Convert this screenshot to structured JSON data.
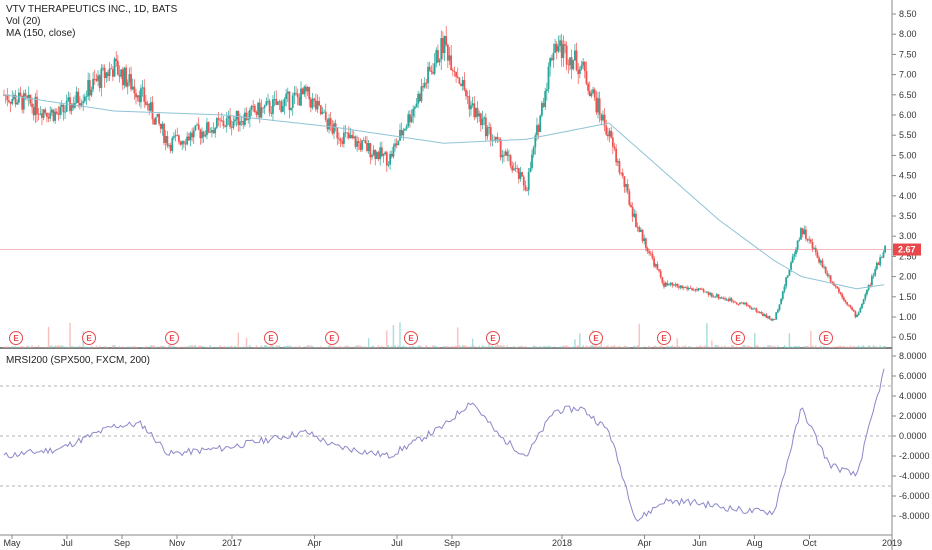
{
  "chart_data": [
    {
      "type": "candlestick",
      "title": "VTV THERAPEUTICS INC., 1D, BATS",
      "legend": [
        "Vol (20)",
        "MA (150, close)"
      ],
      "ylim": [
        0.3,
        8.6
      ],
      "y_ticks": [
        "8.50",
        "8.00",
        "7.50",
        "7.00",
        "6.50",
        "6.00",
        "5.50",
        "5.00",
        "4.50",
        "4.00",
        "3.50",
        "3.00",
        "2.50",
        "2.00",
        "1.50",
        "1.00",
        "0.50"
      ],
      "x_ticks": [
        "May",
        "Jul",
        "Sep",
        "Nov",
        "2017",
        "Apr",
        "Jul",
        "Sep",
        "2018",
        "Apr",
        "Jun",
        "Aug",
        "Oct",
        "2019"
      ],
      "last_price": "2.67",
      "earnings_markers": [
        "E",
        "E",
        "E",
        "E",
        "E",
        "E",
        "E",
        "E",
        "E",
        "E",
        "E"
      ],
      "series": [
        {
          "name": "VTV THERAPEUTICS INC.",
          "x": [
            "May 2016",
            "Jul 2016",
            "Sep 2016",
            "Oct 2016",
            "Nov 2016",
            "2017",
            "Apr 2017",
            "May 2017",
            "Jul 2017",
            "Sep 2017",
            "Oct 2017",
            "Nov 2017",
            "Dec 2017",
            "Jan 2018",
            "Feb 2018",
            "Mar 2018",
            "Apr 2018",
            "May 2018",
            "Jun 2018",
            "Aug 2018",
            "Sep 2018",
            "Oct 2018",
            "Nov 2018",
            "Dec 2018",
            "Jan 2019"
          ],
          "values": [
            6.5,
            6.0,
            7.2,
            6.5,
            5.3,
            5.8,
            6.5,
            5.6,
            4.9,
            7.8,
            6.2,
            5.2,
            4.2,
            7.8,
            7.2,
            5.5,
            3.3,
            1.8,
            1.7,
            1.3,
            0.9,
            3.2,
            2.0,
            1.0,
            2.7
          ]
        },
        {
          "name": "MA (150, close)",
          "x": [
            "May 2016",
            "Sep 2016",
            "2017",
            "May 2017",
            "Sep 2017",
            "Dec 2017",
            "Mar 2018",
            "May 2018",
            "Jul 2018",
            "Sep 2018",
            "Oct 2018",
            "Dec 2018",
            "Jan 2019"
          ],
          "values": [
            6.5,
            6.1,
            6.0,
            5.7,
            5.3,
            5.4,
            5.8,
            4.6,
            3.4,
            2.4,
            2.0,
            1.7,
            1.8
          ]
        }
      ]
    },
    {
      "type": "line",
      "title": "MRSI200 (SPX500, FXCM, 200)",
      "ylim": [
        -9,
        8.5
      ],
      "y_ticks": [
        "8.0000",
        "6.0000",
        "4.0000",
        "2.0000",
        "0.0000",
        "-2.0000",
        "-4.0000",
        "-6.0000",
        "-8.0000"
      ],
      "reference_lines": [
        5,
        0,
        -5
      ],
      "series": [
        {
          "name": "MRSI200",
          "x": [
            "May 2016",
            "Jul 2016",
            "Sep 2016",
            "Oct 2016",
            "Nov 2016",
            "2017",
            "Apr 2017",
            "May 2017",
            "Jul 2017",
            "Sep 2017",
            "Oct 2017",
            "Nov 2017",
            "Dec 2017",
            "Jan 2018",
            "Feb 2018",
            "Mar 2018",
            "Apr 2018",
            "May 2018",
            "Jun 2018",
            "Aug 2018",
            "Sep 2018",
            "Oct 2018",
            "Nov 2018",
            "Dec 2018",
            "Jan 2019"
          ],
          "values": [
            -2.0,
            -1.3,
            1.0,
            1.2,
            -1.8,
            -1.2,
            0.4,
            -1.0,
            -2.0,
            1.0,
            3.5,
            0.0,
            -2.0,
            2.5,
            2.8,
            0.5,
            -8.5,
            -6.5,
            -6.6,
            -7.5,
            -7.6,
            2.8,
            -2.8,
            -4.0,
            6.5
          ]
        }
      ]
    }
  ]
}
